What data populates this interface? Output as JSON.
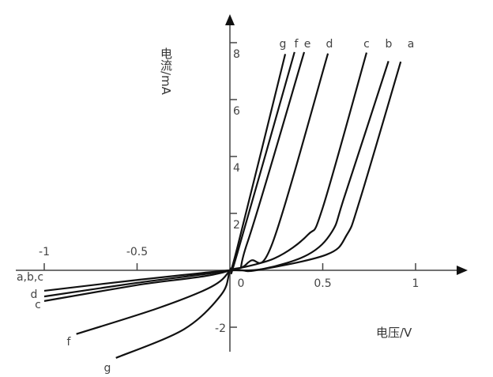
{
  "chart_data": {
    "type": "line",
    "xlabel": "电压/V",
    "ylabel": "电流/mA",
    "xlim": [
      -1.1,
      1.2
    ],
    "ylim": [
      -3,
      8.5
    ],
    "x_ticks": [
      {
        "v": -1,
        "label": "-1"
      },
      {
        "v": -0.5,
        "label": "-0.5"
      },
      {
        "v": 0.5,
        "label": "0.5"
      },
      {
        "v": 1,
        "label": "1"
      }
    ],
    "origin_label": "0",
    "y_ticks": [
      {
        "v": 2,
        "label": "2"
      },
      {
        "v": 4,
        "label": "4"
      },
      {
        "v": 6,
        "label": "6"
      },
      {
        "v": 8,
        "label": "8"
      },
      {
        "v": -2,
        "label": "-2"
      }
    ],
    "series": [
      {
        "name": "a",
        "points": [
          [
            -1,
            -0.72
          ],
          [
            -0.5,
            -0.34
          ],
          [
            0,
            0
          ],
          [
            0.14,
            0
          ],
          [
            0.52,
            0.55
          ],
          [
            0.63,
            1.25
          ],
          [
            0.7,
            2.47
          ],
          [
            0.92,
            7.33
          ]
        ]
      },
      {
        "name": "b",
        "points": [
          [
            0,
            0
          ],
          [
            0.18,
            0.05
          ],
          [
            0.42,
            0.55
          ],
          [
            0.55,
            1.36
          ],
          [
            0.62,
            2.65
          ],
          [
            0.854,
            7.35
          ]
        ]
      },
      {
        "name": "c",
        "points": [
          [
            0,
            0
          ],
          [
            0.24,
            0.42
          ],
          [
            0.42,
            1.25
          ],
          [
            0.5,
            2.2
          ],
          [
            0.736,
            7.65
          ]
        ]
      },
      {
        "name": "d",
        "points": [
          [
            -1,
            -0.92
          ],
          [
            -0.5,
            -0.44
          ],
          [
            0,
            0
          ],
          [
            0.11,
            0.33
          ],
          [
            0.23,
            0.97
          ],
          [
            0.528,
            7.62
          ]
        ]
      },
      {
        "name": "e",
        "points": [
          [
            -1,
            -1.08
          ],
          [
            -0.5,
            -0.52
          ],
          [
            0,
            0
          ],
          [
            0.094,
            0.97
          ],
          [
            0.4,
            7.67
          ]
        ]
      },
      {
        "name": "f",
        "points": [
          [
            -0.827,
            -2.24
          ],
          [
            -0.387,
            -1.33
          ],
          [
            -0.1,
            -0.58
          ],
          [
            0,
            0
          ],
          [
            0.04,
            0.6
          ],
          [
            0.348,
            7.67
          ]
        ]
      },
      {
        "name": "g",
        "points": [
          [
            -0.614,
            -3.08
          ],
          [
            -0.247,
            -2.07
          ],
          [
            -0.047,
            -0.86
          ],
          [
            0,
            0
          ],
          [
            0.04,
            0.8
          ],
          [
            0.298,
            7.6
          ]
        ]
      }
    ],
    "top_labels": [
      "g",
      "f",
      "e",
      "d",
      "c",
      "b",
      "a"
    ],
    "left_labels": [
      "a,b,c",
      "d",
      "c"
    ],
    "bottom_labels": [
      "f",
      "g"
    ]
  }
}
